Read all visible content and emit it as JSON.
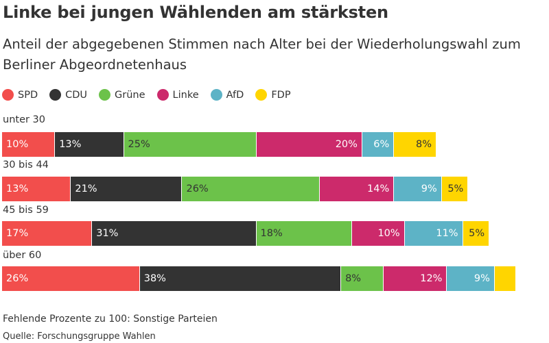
{
  "header": {
    "title": "Linke bei jungen Wählenden am stärksten",
    "subtitle": "Anteil der abgegebenen Stimmen nach Alter bei der Wiederholungswahl zum Berliner Abgeordnetenhaus"
  },
  "footer": {
    "note": "Fehlende Prozente zu 100: Sonstige Parteien",
    "source": "Quelle: Forschungsgruppe Wahlen"
  },
  "chart_data": {
    "type": "bar",
    "orientation": "horizontal",
    "stacked": true,
    "title": "Linke bei jungen Wählenden am stärksten",
    "subtitle": "Anteil der abgegebenen Stimmen nach Alter bei der Wiederholungswahl zum Berliner Abgeordnetenhaus",
    "unit": "%",
    "xlim": [
      0,
      100
    ],
    "legend_position": "top-left",
    "grid": false,
    "categories": [
      "unter 30",
      "30 bis 44",
      "45 bis 59",
      "über 60"
    ],
    "series": [
      {
        "name": "SPD",
        "color": "#f24e4c",
        "values": [
          10,
          13,
          17,
          26
        ],
        "labels": [
          "10%",
          "13%",
          "17%",
          "26%"
        ]
      },
      {
        "name": "CDU",
        "color": "#333333",
        "values": [
          13,
          21,
          31,
          38
        ],
        "labels": [
          "13%",
          "21%",
          "31%",
          "38%"
        ]
      },
      {
        "name": "Grüne",
        "color": "#6cc24a",
        "values": [
          25,
          26,
          18,
          8
        ],
        "labels": [
          "25%",
          "26%",
          "18%",
          "8%"
        ]
      },
      {
        "name": "Linke",
        "color": "#cc2a6b",
        "values": [
          20,
          14,
          10,
          12
        ],
        "labels": [
          "20%",
          "14%",
          "10%",
          "12%"
        ]
      },
      {
        "name": "AfD",
        "color": "#5db3c6",
        "values": [
          6,
          9,
          11,
          9
        ],
        "labels": [
          "6%",
          "9%",
          "11%",
          "9%"
        ]
      },
      {
        "name": "FDP",
        "color": "#ffd500",
        "values": [
          8,
          5,
          5,
          4
        ],
        "labels": [
          "8%",
          "5%",
          "5%",
          ""
        ]
      }
    ]
  }
}
